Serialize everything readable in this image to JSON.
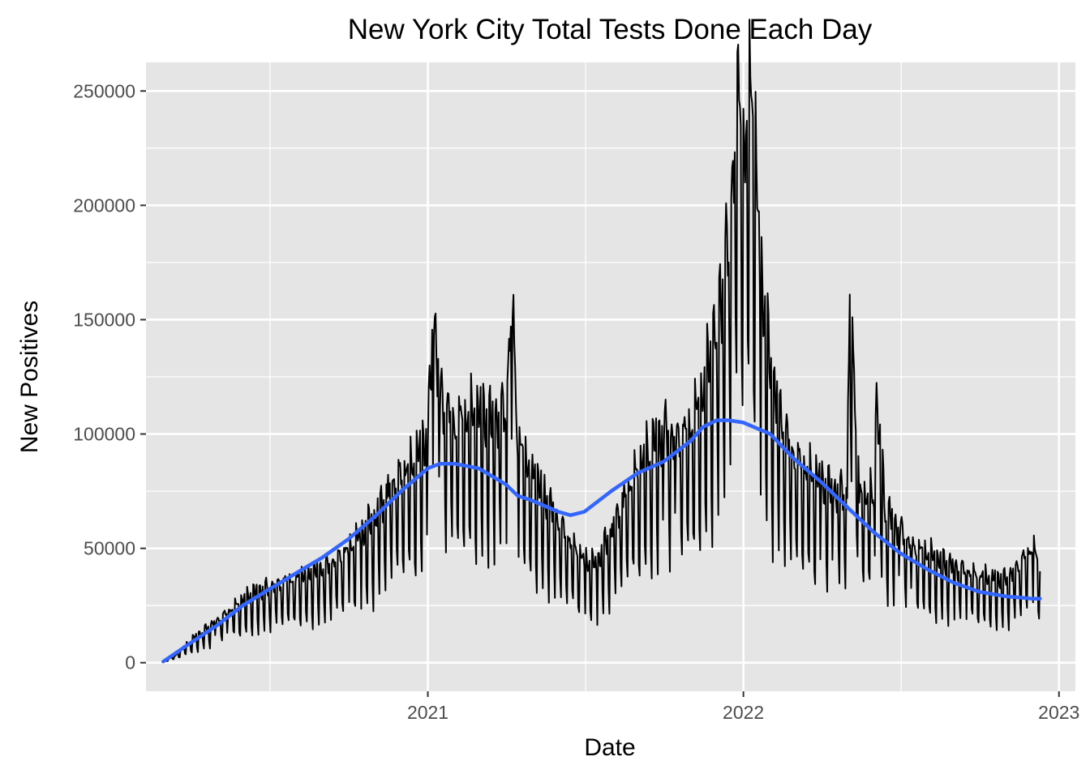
{
  "chart_data": {
    "type": "line",
    "title": "New York City Total Tests Done Each Day",
    "xlabel": "Date",
    "ylabel": "New Positives",
    "x_range": [
      "2020-02-10",
      "2023-01-20"
    ],
    "ylim": [
      -12500,
      262500
    ],
    "x_ticks": [
      {
        "date": "2021-01-01",
        "label": "2021"
      },
      {
        "date": "2022-01-01",
        "label": "2022"
      },
      {
        "date": "2023-01-01",
        "label": "2023"
      }
    ],
    "y_ticks": [
      {
        "value": 0,
        "label": "0"
      },
      {
        "value": 50000,
        "label": "50000"
      },
      {
        "value": 100000,
        "label": "100000"
      },
      {
        "value": 150000,
        "label": "150000"
      },
      {
        "value": 200000,
        "label": "200000"
      },
      {
        "value": 250000,
        "label": "250000"
      }
    ],
    "grid": true,
    "background": "#e5e5e5",
    "grid_major_color": "#ffffff",
    "series": [
      {
        "style": "daily",
        "color": "#000000",
        "points": [
          [
            "2020-03-01",
            500
          ],
          [
            "2020-03-15",
            3000
          ],
          [
            "2020-04-01",
            9000
          ],
          [
            "2020-04-15",
            13000
          ],
          [
            "2020-05-01",
            17000
          ],
          [
            "2020-05-15",
            21000
          ],
          [
            "2020-06-01",
            26000
          ],
          [
            "2020-06-15",
            29000
          ],
          [
            "2020-07-01",
            31000
          ],
          [
            "2020-07-15",
            33000
          ],
          [
            "2020-08-01",
            35000
          ],
          [
            "2020-08-15",
            37000
          ],
          [
            "2020-09-01",
            38000
          ],
          [
            "2020-09-15",
            42000
          ],
          [
            "2020-10-01",
            47000
          ],
          [
            "2020-10-15",
            52000
          ],
          [
            "2020-11-01",
            60000
          ],
          [
            "2020-11-15",
            72000
          ],
          [
            "2020-12-01",
            78000
          ],
          [
            "2020-12-15",
            82000
          ],
          [
            "2021-01-01",
            93000
          ],
          [
            "2021-01-08",
            143000
          ],
          [
            "2021-01-15",
            110000
          ],
          [
            "2021-02-01",
            100000
          ],
          [
            "2021-02-15",
            101000
          ],
          [
            "2021-03-01",
            103000
          ],
          [
            "2021-03-15",
            100000
          ],
          [
            "2021-04-01",
            105000
          ],
          [
            "2021-04-09",
            151000
          ],
          [
            "2021-04-15",
            90000
          ],
          [
            "2021-05-01",
            80000
          ],
          [
            "2021-05-15",
            70000
          ],
          [
            "2021-06-01",
            58000
          ],
          [
            "2021-06-15",
            50000
          ],
          [
            "2021-07-01",
            42000
          ],
          [
            "2021-07-15",
            40000
          ],
          [
            "2021-08-01",
            55000
          ],
          [
            "2021-08-15",
            68000
          ],
          [
            "2021-09-01",
            80000
          ],
          [
            "2021-09-15",
            88000
          ],
          [
            "2021-10-01",
            95000
          ],
          [
            "2021-10-15",
            92000
          ],
          [
            "2021-11-01",
            98000
          ],
          [
            "2021-11-15",
            110000
          ],
          [
            "2021-12-01",
            140000
          ],
          [
            "2021-12-15",
            175000
          ],
          [
            "2021-12-27",
            246000
          ],
          [
            "2022-01-03",
            210000
          ],
          [
            "2022-01-10",
            248000
          ],
          [
            "2022-01-20",
            165000
          ],
          [
            "2022-02-01",
            120000
          ],
          [
            "2022-02-15",
            98000
          ],
          [
            "2022-03-01",
            85000
          ],
          [
            "2022-03-15",
            80000
          ],
          [
            "2022-04-01",
            74000
          ],
          [
            "2022-04-15",
            70000
          ],
          [
            "2022-05-01",
            72000
          ],
          [
            "2022-05-04",
            161000
          ],
          [
            "2022-05-15",
            70000
          ],
          [
            "2022-06-01",
            68000
          ],
          [
            "2022-06-03",
            108000
          ],
          [
            "2022-06-15",
            62000
          ],
          [
            "2022-07-01",
            55000
          ],
          [
            "2022-07-15",
            48000
          ],
          [
            "2022-08-01",
            45000
          ],
          [
            "2022-08-15",
            42000
          ],
          [
            "2022-09-01",
            40000
          ],
          [
            "2022-09-15",
            38000
          ],
          [
            "2022-10-01",
            36000
          ],
          [
            "2022-10-15",
            35000
          ],
          [
            "2022-11-01",
            34000
          ],
          [
            "2022-11-15",
            40000
          ],
          [
            "2022-12-01",
            48000
          ],
          [
            "2022-12-10",
            40000
          ]
        ]
      },
      {
        "style": "smooth",
        "color": "#3366ff",
        "points": [
          [
            "2020-03-01",
            500
          ],
          [
            "2020-04-01",
            8500
          ],
          [
            "2020-05-01",
            16000
          ],
          [
            "2020-06-01",
            25000
          ],
          [
            "2020-07-01",
            32000
          ],
          [
            "2020-08-01",
            39000
          ],
          [
            "2020-09-01",
            46000
          ],
          [
            "2020-10-01",
            54000
          ],
          [
            "2020-11-01",
            64000
          ],
          [
            "2020-12-01",
            75000
          ],
          [
            "2021-01-01",
            85000
          ],
          [
            "2021-01-15",
            87000
          ],
          [
            "2021-02-01",
            87000
          ],
          [
            "2021-03-01",
            85000
          ],
          [
            "2021-04-01",
            78000
          ],
          [
            "2021-04-15",
            73000
          ],
          [
            "2021-05-01",
            71000
          ],
          [
            "2021-06-01",
            66000
          ],
          [
            "2021-06-15",
            64500
          ],
          [
            "2021-07-01",
            66000
          ],
          [
            "2021-08-01",
            75000
          ],
          [
            "2021-09-01",
            83000
          ],
          [
            "2021-10-01",
            88000
          ],
          [
            "2021-11-01",
            97000
          ],
          [
            "2021-11-15",
            103000
          ],
          [
            "2021-12-01",
            106000
          ],
          [
            "2021-12-15",
            106000
          ],
          [
            "2022-01-01",
            105000
          ],
          [
            "2022-02-01",
            100000
          ],
          [
            "2022-03-01",
            89000
          ],
          [
            "2022-04-01",
            79000
          ],
          [
            "2022-05-01",
            68000
          ],
          [
            "2022-06-01",
            57000
          ],
          [
            "2022-07-01",
            48000
          ],
          [
            "2022-08-01",
            41000
          ],
          [
            "2022-09-01",
            35000
          ],
          [
            "2022-10-01",
            31000
          ],
          [
            "2022-11-01",
            29000
          ],
          [
            "2022-12-01",
            28000
          ],
          [
            "2022-12-10",
            28000
          ]
        ]
      }
    ]
  }
}
